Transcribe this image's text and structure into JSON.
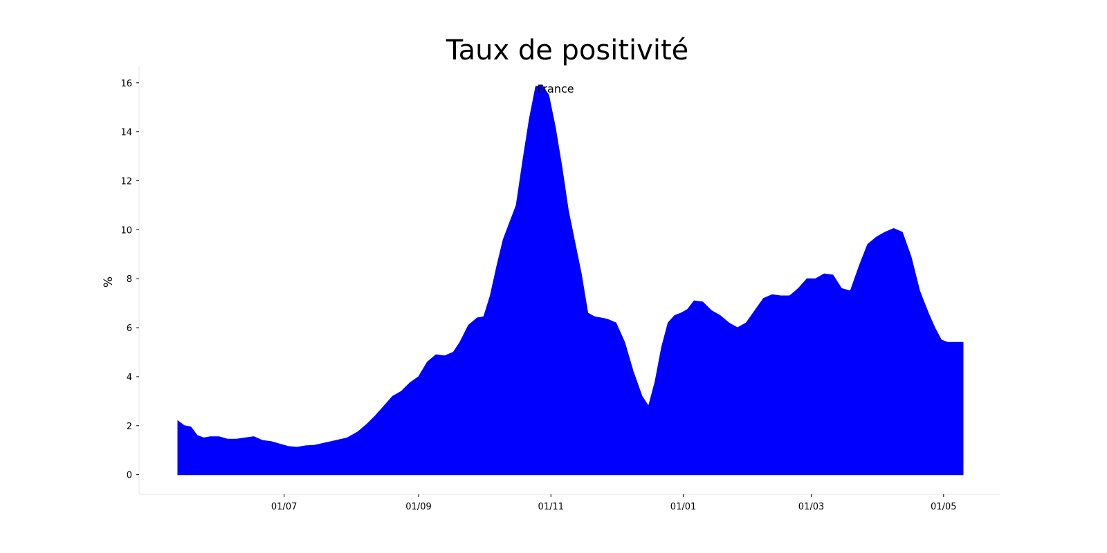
{
  "chart_data": {
    "type": "area",
    "title": "Taux de positivité",
    "xlabel": "",
    "ylabel": "%",
    "annotation": "France",
    "color": "#0000ff",
    "grid": false,
    "x_range": [
      "2020-05-13",
      "2021-05-10"
    ],
    "ylim": [
      -0.8,
      16.7
    ],
    "yticks": [
      0,
      2,
      4,
      6,
      8,
      10,
      12,
      14,
      16
    ],
    "xticks": [
      {
        "date": "2020-07-01",
        "label": "01/07"
      },
      {
        "date": "2020-09-01",
        "label": "01/09"
      },
      {
        "date": "2020-11-01",
        "label": "01/11"
      },
      {
        "date": "2021-01-01",
        "label": "01/01"
      },
      {
        "date": "2021-03-01",
        "label": "01/03"
      },
      {
        "date": "2021-05-01",
        "label": "01/05"
      }
    ],
    "series": [
      {
        "x": [
          "2020-05-13",
          "2020-05-16",
          "2020-05-19",
          "2020-05-22",
          "2020-05-25",
          "2020-05-28",
          "2020-06-01",
          "2020-06-05",
          "2020-06-09",
          "2020-06-13",
          "2020-06-17",
          "2020-06-21",
          "2020-06-25",
          "2020-06-29",
          "2020-07-03",
          "2020-07-07",
          "2020-07-11",
          "2020-07-15",
          "2020-07-20",
          "2020-07-25",
          "2020-07-30",
          "2020-08-04",
          "2020-08-08",
          "2020-08-12",
          "2020-08-16",
          "2020-08-20",
          "2020-08-24",
          "2020-08-28",
          "2020-09-01",
          "2020-09-05",
          "2020-09-09",
          "2020-09-13",
          "2020-09-17",
          "2020-09-20",
          "2020-09-24",
          "2020-09-28",
          "2020-10-01",
          "2020-10-04",
          "2020-10-07",
          "2020-10-10",
          "2020-10-13",
          "2020-10-16",
          "2020-10-19",
          "2020-10-22",
          "2020-10-25",
          "2020-10-28",
          "2020-10-31",
          "2020-11-03",
          "2020-11-06",
          "2020-11-09",
          "2020-11-12",
          "2020-11-15",
          "2020-11-18",
          "2020-11-21",
          "2020-11-24",
          "2020-11-27",
          "2020-12-01",
          "2020-12-05",
          "2020-12-09",
          "2020-12-13",
          "2020-12-16",
          "2020-12-19",
          "2020-12-22",
          "2020-12-25",
          "2020-12-28",
          "2020-12-31",
          "2021-01-03",
          "2021-01-06",
          "2021-01-10",
          "2021-01-14",
          "2021-01-18",
          "2021-01-22",
          "2021-01-26",
          "2021-01-30",
          "2021-02-03",
          "2021-02-07",
          "2021-02-11",
          "2021-02-15",
          "2021-02-19",
          "2021-02-23",
          "2021-02-27",
          "2021-03-03",
          "2021-03-07",
          "2021-03-11",
          "2021-03-15",
          "2021-03-19",
          "2021-03-23",
          "2021-03-27",
          "2021-03-31",
          "2021-04-04",
          "2021-04-08",
          "2021-04-12",
          "2021-04-16",
          "2021-04-20",
          "2021-04-24",
          "2021-04-27",
          "2021-04-30",
          "2021-05-03",
          "2021-05-06",
          "2021-05-08",
          "2021-05-10"
        ],
        "y": [
          2.2,
          2.0,
          1.95,
          1.6,
          1.5,
          1.55,
          1.55,
          1.45,
          1.45,
          1.5,
          1.55,
          1.4,
          1.35,
          1.25,
          1.15,
          1.12,
          1.18,
          1.2,
          1.3,
          1.4,
          1.5,
          1.75,
          2.05,
          2.4,
          2.8,
          3.2,
          3.4,
          3.75,
          4.0,
          4.6,
          4.9,
          4.85,
          5.0,
          5.4,
          6.1,
          6.4,
          6.45,
          7.3,
          8.5,
          9.6,
          10.3,
          11.0,
          12.8,
          14.5,
          15.85,
          15.9,
          15.5,
          14.2,
          12.6,
          10.8,
          9.5,
          8.2,
          6.6,
          6.45,
          6.4,
          6.35,
          6.2,
          5.4,
          4.2,
          3.2,
          2.8,
          3.8,
          5.2,
          6.2,
          6.5,
          6.6,
          6.75,
          7.1,
          7.05,
          6.7,
          6.5,
          6.2,
          6.0,
          6.2,
          6.7,
          7.2,
          7.35,
          7.3,
          7.3,
          7.6,
          8.0,
          8.0,
          8.2,
          8.15,
          7.6,
          7.5,
          8.5,
          9.4,
          9.7,
          9.9,
          10.05,
          9.9,
          8.9,
          7.5,
          6.6,
          6.0,
          5.5,
          5.4,
          5.4,
          5.4,
          5.4
        ]
      }
    ]
  }
}
